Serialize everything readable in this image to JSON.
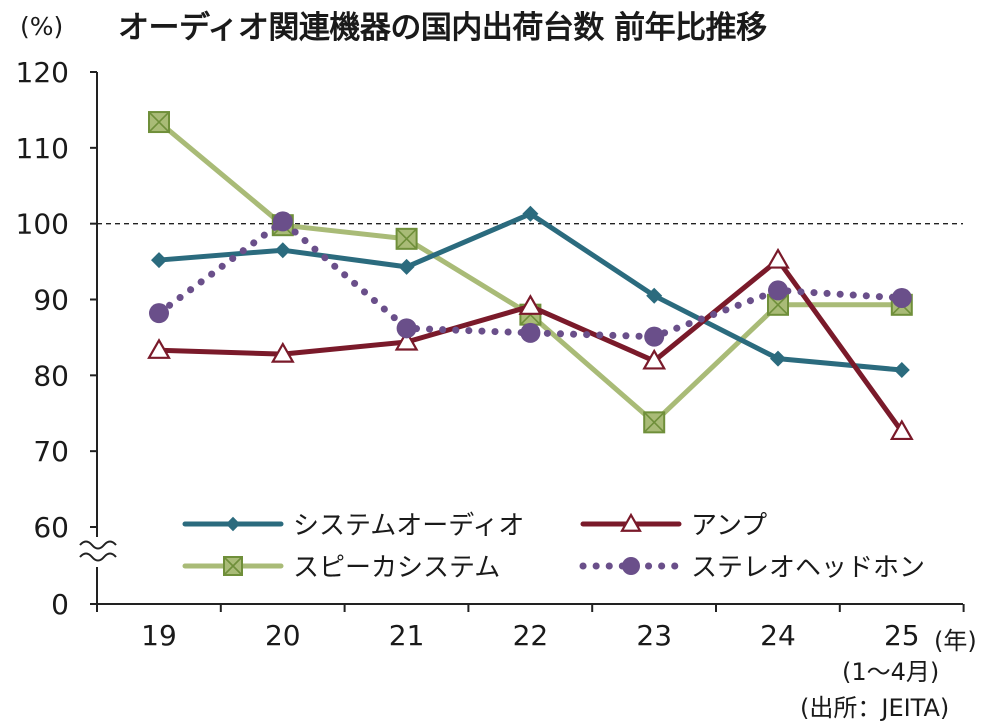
{
  "title": "オーディオ関連機器の国内出荷台数 前年比推移",
  "y_unit": "(%)",
  "x_unit": "(年)",
  "x_note": "(1～4月)",
  "source": "(出所：JEITA)",
  "chart_data": {
    "type": "line",
    "title": "オーディオ関連機器の国内出荷台数 前年比推移",
    "x": [
      "19",
      "20",
      "21",
      "22",
      "23",
      "24",
      "25"
    ],
    "ylabel": "(%)",
    "xlabel": "(年)",
    "x_note": "(1～4月)",
    "y_ticks": [
      0,
      60,
      70,
      80,
      90,
      100,
      110,
      120
    ],
    "y_axis_break": [
      0,
      60
    ],
    "ylim": [
      60,
      120
    ],
    "reference_line": 100,
    "grid": false,
    "legend_position": "bottom",
    "series": [
      {
        "name": "システムオーディオ",
        "values": [
          95.2,
          96.5,
          94.3,
          101.3,
          90.5,
          82.2,
          80.7
        ],
        "color": "#2b6b7e",
        "marker": "diamond",
        "dash": false
      },
      {
        "name": "アンプ",
        "values": [
          83.3,
          82.8,
          84.4,
          89.1,
          81.9,
          95.2,
          72.6
        ],
        "color": "#7a1a2a",
        "marker": "triangle-open",
        "dash": false
      },
      {
        "name": "スピーカシステム",
        "values": [
          113.4,
          99.8,
          98.0,
          88.0,
          73.8,
          89.3,
          89.3
        ],
        "color": "#a9bb77",
        "marker": "square-x",
        "dash": false
      },
      {
        "name": "ステレオヘッドホン",
        "values": [
          88.2,
          100.3,
          86.2,
          85.6,
          85.1,
          91.2,
          90.2
        ],
        "color": "#6a4f8a",
        "marker": "circle",
        "dash": true
      }
    ]
  }
}
